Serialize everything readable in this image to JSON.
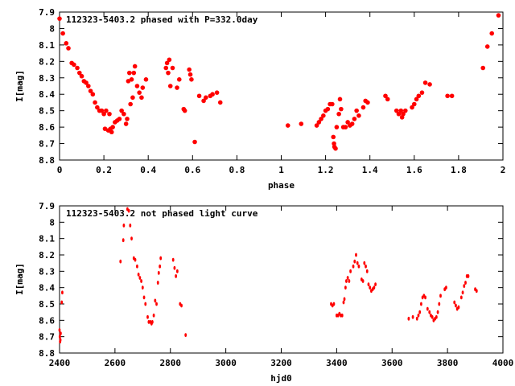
{
  "chart_data": [
    {
      "type": "scatter",
      "title": "112323-5403.2 phased with P=332.0day",
      "xlabel": "phase",
      "ylabel": "I[mag]",
      "xlim": [
        0,
        2
      ],
      "ylim": [
        8.8,
        7.9
      ],
      "y_inverted": true,
      "grid": false,
      "marker_color": "#ff0000",
      "x_ticks": [
        "0",
        "0.2",
        "0.4",
        "0.6",
        "0.8",
        "1",
        "1.2",
        "1.4",
        "1.6",
        "1.8",
        "2"
      ],
      "x_tick_values": [
        0,
        0.2,
        0.4,
        0.6,
        0.8,
        1,
        1.2,
        1.4,
        1.6,
        1.8,
        2
      ],
      "y_ticks": [
        "7.9",
        "8",
        "8.1",
        "8.2",
        "8.3",
        "8.4",
        "8.5",
        "8.6",
        "8.7",
        "8.8"
      ],
      "y_tick_values": [
        7.9,
        8.0,
        8.1,
        8.2,
        8.3,
        8.4,
        8.5,
        8.6,
        8.7,
        8.8
      ],
      "points": [
        [
          0.0,
          7.94
        ],
        [
          0.015,
          8.03
        ],
        [
          0.03,
          8.09
        ],
        [
          0.04,
          8.12
        ],
        [
          0.055,
          8.21
        ],
        [
          0.065,
          8.22
        ],
        [
          0.08,
          8.24
        ],
        [
          0.09,
          8.27
        ],
        [
          0.1,
          8.29
        ],
        [
          0.11,
          8.32
        ],
        [
          0.12,
          8.33
        ],
        [
          0.13,
          8.35
        ],
        [
          0.14,
          8.38
        ],
        [
          0.15,
          8.4
        ],
        [
          0.16,
          8.45
        ],
        [
          0.17,
          8.48
        ],
        [
          0.18,
          8.5
        ],
        [
          0.19,
          8.5
        ],
        [
          0.2,
          8.52
        ],
        [
          0.205,
          8.61
        ],
        [
          0.21,
          8.5
        ],
        [
          0.22,
          8.62
        ],
        [
          0.225,
          8.52
        ],
        [
          0.23,
          8.61
        ],
        [
          0.235,
          8.63
        ],
        [
          0.24,
          8.6
        ],
        [
          0.25,
          8.57
        ],
        [
          0.26,
          8.56
        ],
        [
          0.27,
          8.55
        ],
        [
          0.28,
          8.5
        ],
        [
          0.29,
          8.52
        ],
        [
          0.3,
          8.58
        ],
        [
          0.305,
          8.55
        ],
        [
          0.31,
          8.32
        ],
        [
          0.315,
          8.27
        ],
        [
          0.32,
          8.46
        ],
        [
          0.325,
          8.31
        ],
        [
          0.33,
          8.42
        ],
        [
          0.335,
          8.27
        ],
        [
          0.34,
          8.23
        ],
        [
          0.35,
          8.35
        ],
        [
          0.36,
          8.39
        ],
        [
          0.37,
          8.42
        ],
        [
          0.375,
          8.36
        ],
        [
          0.39,
          8.31
        ],
        [
          0.48,
          8.24
        ],
        [
          0.485,
          8.21
        ],
        [
          0.49,
          8.27
        ],
        [
          0.495,
          8.19
        ],
        [
          0.5,
          8.35
        ],
        [
          0.51,
          8.24
        ],
        [
          0.53,
          8.36
        ],
        [
          0.54,
          8.31
        ],
        [
          0.56,
          8.49
        ],
        [
          0.565,
          8.5
        ],
        [
          0.585,
          8.25
        ],
        [
          0.59,
          8.28
        ],
        [
          0.595,
          8.31
        ],
        [
          0.61,
          8.69
        ],
        [
          0.63,
          8.41
        ],
        [
          0.65,
          8.44
        ],
        [
          0.66,
          8.42
        ],
        [
          0.68,
          8.41
        ],
        [
          0.69,
          8.4
        ],
        [
          0.71,
          8.39
        ],
        [
          0.725,
          8.45
        ],
        [
          1.03,
          8.59
        ],
        [
          1.09,
          8.58
        ],
        [
          1.16,
          8.59
        ],
        [
          1.17,
          8.57
        ],
        [
          1.18,
          8.55
        ],
        [
          1.19,
          8.53
        ],
        [
          1.2,
          8.5
        ],
        [
          1.21,
          8.49
        ],
        [
          1.22,
          8.46
        ],
        [
          1.23,
          8.46
        ],
        [
          1.235,
          8.66
        ],
        [
          1.238,
          8.7
        ],
        [
          1.24,
          8.72
        ],
        [
          1.245,
          8.73
        ],
        [
          1.25,
          8.6
        ],
        [
          1.26,
          8.52
        ],
        [
          1.265,
          8.43
        ],
        [
          1.27,
          8.49
        ],
        [
          1.28,
          8.6
        ],
        [
          1.29,
          8.6
        ],
        [
          1.3,
          8.57
        ],
        [
          1.31,
          8.59
        ],
        [
          1.32,
          8.58
        ],
        [
          1.33,
          8.55
        ],
        [
          1.34,
          8.5
        ],
        [
          1.35,
          8.53
        ],
        [
          1.37,
          8.48
        ],
        [
          1.38,
          8.44
        ],
        [
          1.39,
          8.45
        ],
        [
          1.47,
          8.41
        ],
        [
          1.48,
          8.43
        ],
        [
          1.52,
          8.5
        ],
        [
          1.53,
          8.52
        ],
        [
          1.54,
          8.5
        ],
        [
          1.545,
          8.54
        ],
        [
          1.55,
          8.52
        ],
        [
          1.56,
          8.5
        ],
        [
          1.59,
          8.48
        ],
        [
          1.6,
          8.46
        ],
        [
          1.61,
          8.43
        ],
        [
          1.62,
          8.41
        ],
        [
          1.635,
          8.39
        ],
        [
          1.65,
          8.33
        ],
        [
          1.67,
          8.34
        ],
        [
          1.75,
          8.41
        ],
        [
          1.77,
          8.41
        ],
        [
          1.91,
          8.24
        ],
        [
          1.93,
          8.11
        ],
        [
          1.95,
          8.03
        ],
        [
          1.98,
          7.92
        ]
      ]
    },
    {
      "type": "scatter",
      "title": "112323-5403.2 not phased light curve",
      "xlabel": "hjd0",
      "ylabel": "I[mag]",
      "xlim": [
        2400,
        4000
      ],
      "ylim": [
        8.8,
        7.9
      ],
      "y_inverted": true,
      "grid": false,
      "marker_color": "#ff0000",
      "x_ticks": [
        "2400",
        "2600",
        "2800",
        "3000",
        "3200",
        "3400",
        "3600",
        "3800",
        "4000"
      ],
      "x_tick_values": [
        2400,
        2600,
        2800,
        3000,
        3200,
        3400,
        3600,
        3800,
        4000
      ],
      "y_ticks": [
        "7.9",
        "8",
        "8.1",
        "8.2",
        "8.3",
        "8.4",
        "8.5",
        "8.6",
        "8.7",
        "8.8"
      ],
      "y_tick_values": [
        7.9,
        8.0,
        8.1,
        8.2,
        8.3,
        8.4,
        8.5,
        8.6,
        8.7,
        8.8
      ],
      "points": [
        [
          2400,
          8.66
        ],
        [
          2401,
          8.7
        ],
        [
          2402,
          8.73
        ],
        [
          2403,
          8.72
        ],
        [
          2404,
          8.68
        ],
        [
          2408,
          8.49
        ],
        [
          2410,
          8.43
        ],
        [
          2620,
          8.24
        ],
        [
          2630,
          8.11
        ],
        [
          2632,
          8.02
        ],
        [
          2645,
          7.92
        ],
        [
          2650,
          7.93
        ],
        [
          2655,
          8.02
        ],
        [
          2660,
          8.1
        ],
        [
          2668,
          8.22
        ],
        [
          2673,
          8.23
        ],
        [
          2680,
          8.27
        ],
        [
          2685,
          8.32
        ],
        [
          2690,
          8.34
        ],
        [
          2695,
          8.36
        ],
        [
          2700,
          8.4
        ],
        [
          2705,
          8.46
        ],
        [
          2710,
          8.5
        ],
        [
          2718,
          8.58
        ],
        [
          2722,
          8.61
        ],
        [
          2728,
          8.61
        ],
        [
          2732,
          8.62
        ],
        [
          2735,
          8.61
        ],
        [
          2740,
          8.57
        ],
        [
          2745,
          8.48
        ],
        [
          2750,
          8.5
        ],
        [
          2755,
          8.37
        ],
        [
          2758,
          8.31
        ],
        [
          2762,
          8.27
        ],
        [
          2765,
          8.22
        ],
        [
          2810,
          8.23
        ],
        [
          2815,
          8.28
        ],
        [
          2820,
          8.33
        ],
        [
          2825,
          8.3
        ],
        [
          2835,
          8.5
        ],
        [
          2840,
          8.51
        ],
        [
          2855,
          8.69
        ],
        [
          3380,
          8.5
        ],
        [
          3385,
          8.51
        ],
        [
          3390,
          8.5
        ],
        [
          3400,
          8.57
        ],
        [
          3405,
          8.57
        ],
        [
          3410,
          8.56
        ],
        [
          3415,
          8.57
        ],
        [
          3420,
          8.57
        ],
        [
          3425,
          8.49
        ],
        [
          3428,
          8.47
        ],
        [
          3432,
          8.4
        ],
        [
          3435,
          8.36
        ],
        [
          3440,
          8.34
        ],
        [
          3445,
          8.36
        ],
        [
          3450,
          8.3
        ],
        [
          3460,
          8.27
        ],
        [
          3465,
          8.24
        ],
        [
          3470,
          8.2
        ],
        [
          3475,
          8.25
        ],
        [
          3480,
          8.27
        ],
        [
          3490,
          8.35
        ],
        [
          3495,
          8.36
        ],
        [
          3500,
          8.25
        ],
        [
          3505,
          8.27
        ],
        [
          3510,
          8.3
        ],
        [
          3515,
          8.38
        ],
        [
          3520,
          8.4
        ],
        [
          3525,
          8.42
        ],
        [
          3530,
          8.41
        ],
        [
          3535,
          8.4
        ],
        [
          3540,
          8.38
        ],
        [
          3660,
          8.59
        ],
        [
          3675,
          8.58
        ],
        [
          3690,
          8.59
        ],
        [
          3695,
          8.57
        ],
        [
          3700,
          8.55
        ],
        [
          3705,
          8.5
        ],
        [
          3710,
          8.46
        ],
        [
          3715,
          8.45
        ],
        [
          3720,
          8.46
        ],
        [
          3728,
          8.53
        ],
        [
          3735,
          8.55
        ],
        [
          3740,
          8.57
        ],
        [
          3745,
          8.58
        ],
        [
          3750,
          8.6
        ],
        [
          3755,
          8.59
        ],
        [
          3760,
          8.58
        ],
        [
          3765,
          8.55
        ],
        [
          3770,
          8.5
        ],
        [
          3775,
          8.45
        ],
        [
          3790,
          8.41
        ],
        [
          3795,
          8.4
        ],
        [
          3825,
          8.49
        ],
        [
          3830,
          8.51
        ],
        [
          3835,
          8.53
        ],
        [
          3840,
          8.52
        ],
        [
          3850,
          8.46
        ],
        [
          3855,
          8.43
        ],
        [
          3860,
          8.39
        ],
        [
          3865,
          8.37
        ],
        [
          3870,
          8.33
        ],
        [
          3875,
          8.33
        ],
        [
          3900,
          8.41
        ],
        [
          3905,
          8.42
        ]
      ]
    }
  ]
}
